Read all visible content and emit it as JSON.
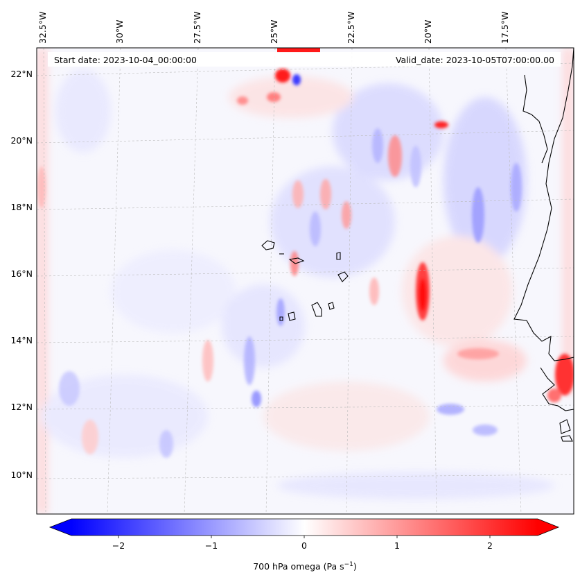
{
  "map": {
    "start_date": "Start date: 2023-10-04_00:00:00",
    "valid_date": "Valid_date: 2023-10-05T07:00:00.00",
    "lon_ticks": [
      "32.5°W",
      "30°W",
      "27.5°W",
      "25°W",
      "22.5°W",
      "20°W",
      "17.5°W"
    ],
    "lat_ticks": [
      "22°N",
      "20°N",
      "18°N",
      "16°N",
      "14°N",
      "12°N",
      "10°N"
    ],
    "gridlines": true,
    "features": [
      "cape-verde-islands",
      "west-africa-coastline"
    ]
  },
  "colorbar": {
    "colormap": "bwr",
    "min": -2.5,
    "max": 2.5,
    "extend": "both",
    "ticks": [
      "−2",
      "−1",
      "0",
      "1",
      "2"
    ],
    "tick_values": [
      -2,
      -1,
      0,
      1,
      2
    ],
    "label_prefix": "700 hPa omega (Pa s",
    "label_exp": "−1",
    "label_suffix": ")"
  }
}
